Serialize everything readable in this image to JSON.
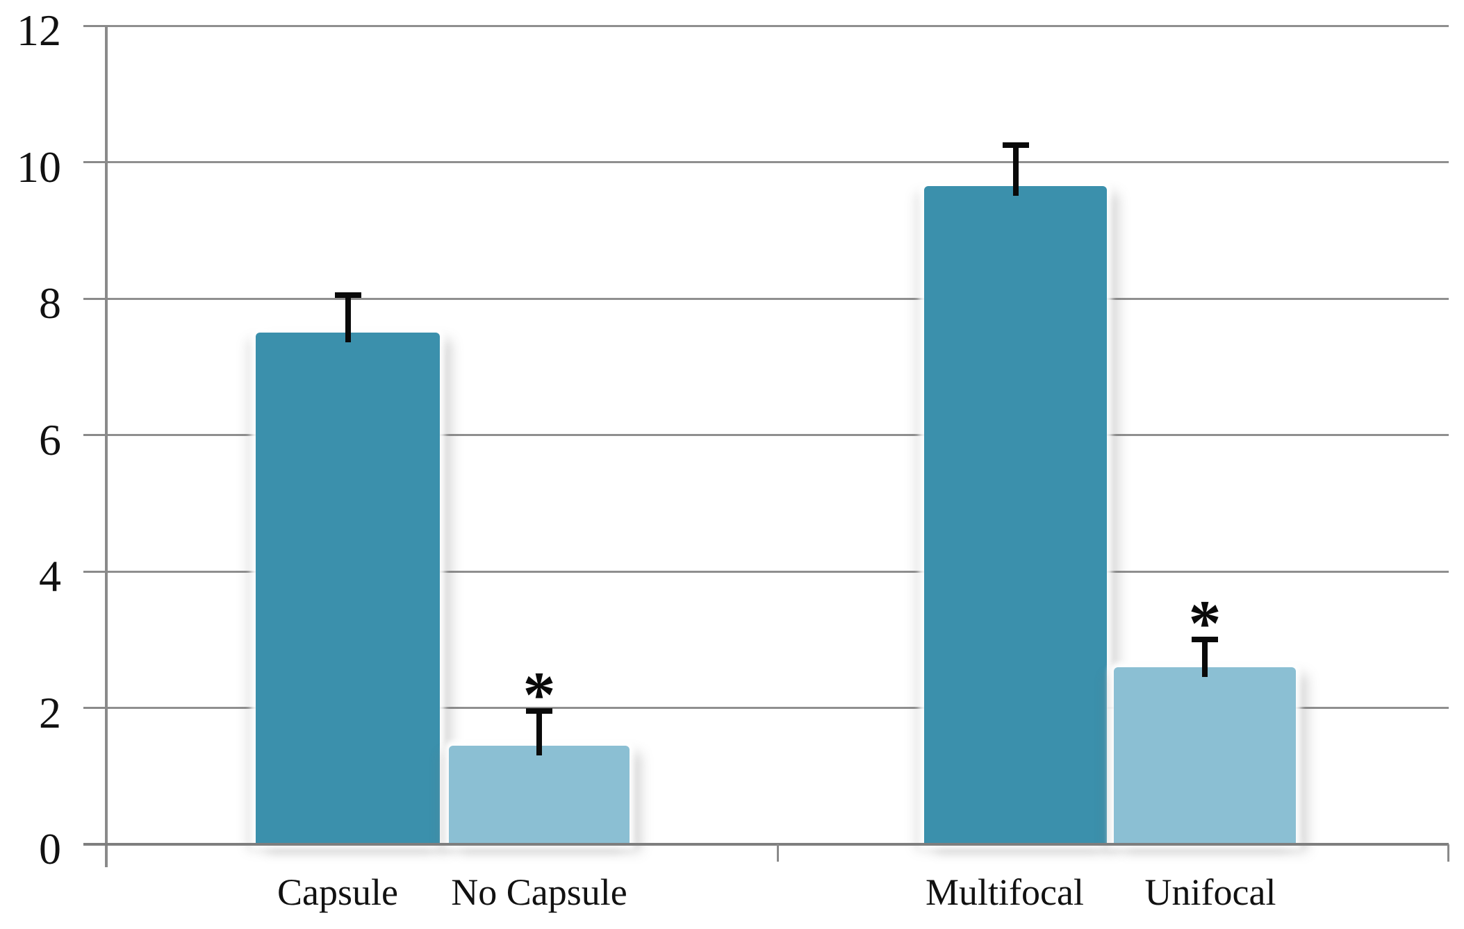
{
  "chart_data": {
    "type": "bar",
    "categories": [
      "Capsule",
      "No Capsule",
      "Multifocal",
      "Unifocal"
    ],
    "values": [
      7.5,
      1.45,
      9.65,
      2.6
    ],
    "error_plus": [
      0.55,
      0.5,
      0.6,
      0.4
    ],
    "significance_markers": [
      "",
      "*",
      "",
      "*"
    ],
    "bar_colors": [
      "#3B90AC",
      "#8BBFD3",
      "#3B90AC",
      "#8BBFD3"
    ],
    "groups": [
      [
        "Capsule",
        "No Capsule"
      ],
      [
        "Multifocal",
        "Unifocal"
      ]
    ],
    "title": "",
    "xlabel": "",
    "ylabel": "",
    "ylim": [
      0,
      12
    ],
    "yticks": [
      0,
      2,
      4,
      6,
      8,
      10,
      12
    ],
    "grid": true,
    "legend": "none"
  },
  "colors": {
    "background": "#FFFFFF",
    "bar_dark": "#3B90AC",
    "bar_light": "#8BBFD3",
    "gridline": "#8F8F8F",
    "axis_line": "#8A8A8A",
    "baseline": "#7E7E7E",
    "tick": "#8A8A8A",
    "error_bar": "#0A0A0A",
    "text": "#111111"
  }
}
